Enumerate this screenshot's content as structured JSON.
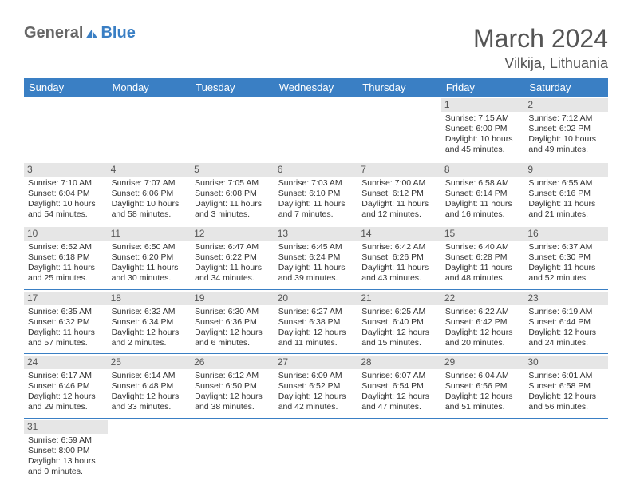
{
  "logo": {
    "text1": "General",
    "text2": "Blue"
  },
  "title": "March 2024",
  "location": "Vilkija, Lithuania",
  "weekdays": [
    "Sunday",
    "Monday",
    "Tuesday",
    "Wednesday",
    "Thursday",
    "Friday",
    "Saturday"
  ],
  "colors": {
    "header_bg": "#3a7fc4",
    "header_text": "#ffffff",
    "daynum_bg": "#e6e6e6",
    "row_border": "#3a7fc4",
    "title_color": "#555555",
    "text_color": "#333333"
  },
  "weeks": [
    [
      null,
      null,
      null,
      null,
      null,
      {
        "d": "1",
        "sr": "7:15 AM",
        "ss": "6:00 PM",
        "dl": "10 hours and 45 minutes."
      },
      {
        "d": "2",
        "sr": "7:12 AM",
        "ss": "6:02 PM",
        "dl": "10 hours and 49 minutes."
      }
    ],
    [
      {
        "d": "3",
        "sr": "7:10 AM",
        "ss": "6:04 PM",
        "dl": "10 hours and 54 minutes."
      },
      {
        "d": "4",
        "sr": "7:07 AM",
        "ss": "6:06 PM",
        "dl": "10 hours and 58 minutes."
      },
      {
        "d": "5",
        "sr": "7:05 AM",
        "ss": "6:08 PM",
        "dl": "11 hours and 3 minutes."
      },
      {
        "d": "6",
        "sr": "7:03 AM",
        "ss": "6:10 PM",
        "dl": "11 hours and 7 minutes."
      },
      {
        "d": "7",
        "sr": "7:00 AM",
        "ss": "6:12 PM",
        "dl": "11 hours and 12 minutes."
      },
      {
        "d": "8",
        "sr": "6:58 AM",
        "ss": "6:14 PM",
        "dl": "11 hours and 16 minutes."
      },
      {
        "d": "9",
        "sr": "6:55 AM",
        "ss": "6:16 PM",
        "dl": "11 hours and 21 minutes."
      }
    ],
    [
      {
        "d": "10",
        "sr": "6:52 AM",
        "ss": "6:18 PM",
        "dl": "11 hours and 25 minutes."
      },
      {
        "d": "11",
        "sr": "6:50 AM",
        "ss": "6:20 PM",
        "dl": "11 hours and 30 minutes."
      },
      {
        "d": "12",
        "sr": "6:47 AM",
        "ss": "6:22 PM",
        "dl": "11 hours and 34 minutes."
      },
      {
        "d": "13",
        "sr": "6:45 AM",
        "ss": "6:24 PM",
        "dl": "11 hours and 39 minutes."
      },
      {
        "d": "14",
        "sr": "6:42 AM",
        "ss": "6:26 PM",
        "dl": "11 hours and 43 minutes."
      },
      {
        "d": "15",
        "sr": "6:40 AM",
        "ss": "6:28 PM",
        "dl": "11 hours and 48 minutes."
      },
      {
        "d": "16",
        "sr": "6:37 AM",
        "ss": "6:30 PM",
        "dl": "11 hours and 52 minutes."
      }
    ],
    [
      {
        "d": "17",
        "sr": "6:35 AM",
        "ss": "6:32 PM",
        "dl": "11 hours and 57 minutes."
      },
      {
        "d": "18",
        "sr": "6:32 AM",
        "ss": "6:34 PM",
        "dl": "12 hours and 2 minutes."
      },
      {
        "d": "19",
        "sr": "6:30 AM",
        "ss": "6:36 PM",
        "dl": "12 hours and 6 minutes."
      },
      {
        "d": "20",
        "sr": "6:27 AM",
        "ss": "6:38 PM",
        "dl": "12 hours and 11 minutes."
      },
      {
        "d": "21",
        "sr": "6:25 AM",
        "ss": "6:40 PM",
        "dl": "12 hours and 15 minutes."
      },
      {
        "d": "22",
        "sr": "6:22 AM",
        "ss": "6:42 PM",
        "dl": "12 hours and 20 minutes."
      },
      {
        "d": "23",
        "sr": "6:19 AM",
        "ss": "6:44 PM",
        "dl": "12 hours and 24 minutes."
      }
    ],
    [
      {
        "d": "24",
        "sr": "6:17 AM",
        "ss": "6:46 PM",
        "dl": "12 hours and 29 minutes."
      },
      {
        "d": "25",
        "sr": "6:14 AM",
        "ss": "6:48 PM",
        "dl": "12 hours and 33 minutes."
      },
      {
        "d": "26",
        "sr": "6:12 AM",
        "ss": "6:50 PM",
        "dl": "12 hours and 38 minutes."
      },
      {
        "d": "27",
        "sr": "6:09 AM",
        "ss": "6:52 PM",
        "dl": "12 hours and 42 minutes."
      },
      {
        "d": "28",
        "sr": "6:07 AM",
        "ss": "6:54 PM",
        "dl": "12 hours and 47 minutes."
      },
      {
        "d": "29",
        "sr": "6:04 AM",
        "ss": "6:56 PM",
        "dl": "12 hours and 51 minutes."
      },
      {
        "d": "30",
        "sr": "6:01 AM",
        "ss": "6:58 PM",
        "dl": "12 hours and 56 minutes."
      }
    ],
    [
      {
        "d": "31",
        "sr": "6:59 AM",
        "ss": "8:00 PM",
        "dl": "13 hours and 0 minutes."
      },
      null,
      null,
      null,
      null,
      null,
      null
    ]
  ],
  "labels": {
    "sunrise": "Sunrise:",
    "sunset": "Sunset:",
    "daylight": "Daylight:"
  }
}
